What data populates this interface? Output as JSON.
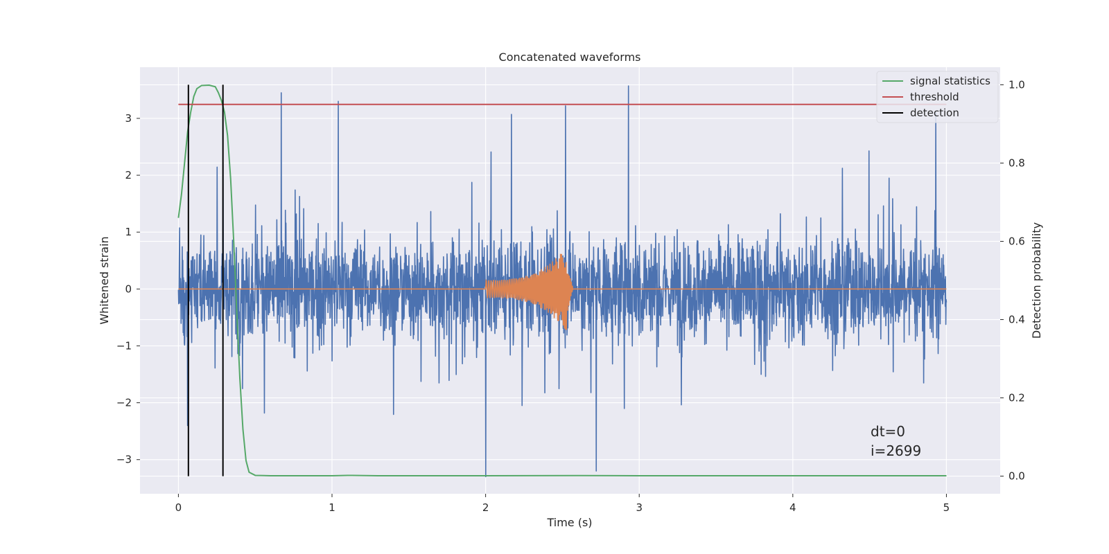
{
  "chart_data": {
    "type": "line",
    "title": "Concatenated waveforms",
    "xlabel": "Time (s)",
    "ylabel_left": "Whitened strain",
    "ylabel_right": "Detection probability",
    "xlim": [
      -0.25,
      5.35
    ],
    "ylim_left": [
      -3.6,
      3.9
    ],
    "ylim_right": [
      -0.045,
      1.045
    ],
    "xticks": [
      0,
      1,
      2,
      3,
      4,
      5
    ],
    "yticks_left": [
      -3,
      -2,
      -1,
      0,
      1,
      2,
      3
    ],
    "yticks_right": [
      0.0,
      0.2,
      0.4,
      0.6,
      0.8,
      1.0
    ],
    "xtick_labels": [
      "0",
      "1",
      "2",
      "3",
      "4",
      "5"
    ],
    "ytick_labels_left": [
      "−3",
      "−2",
      "−1",
      "0",
      "1",
      "2",
      "3"
    ],
    "ytick_labels_right": [
      "0.0",
      "0.2",
      "0.4",
      "0.6",
      "0.8",
      "1.0"
    ],
    "grid": true,
    "legend_position": "top-right",
    "legend": [
      {
        "label": "signal statistics",
        "color": "#55a868"
      },
      {
        "label": "threshold",
        "color": "#c44e52"
      },
      {
        "label": "detection",
        "color": "#000000"
      }
    ],
    "series": [
      {
        "name": "signal statistics",
        "axis": "right",
        "color": "#55a868",
        "x": [
          0.0,
          0.02,
          0.04,
          0.06,
          0.08,
          0.1,
          0.12,
          0.15,
          0.2,
          0.24,
          0.26,
          0.28,
          0.3,
          0.32,
          0.34,
          0.36,
          0.38,
          0.4,
          0.42,
          0.44,
          0.46,
          0.5,
          0.6,
          1.0,
          1.1,
          1.3,
          2.0,
          2.6,
          3.0,
          4.0,
          5.0
        ],
        "y": [
          0.66,
          0.72,
          0.8,
          0.88,
          0.93,
          0.97,
          0.99,
          0.998,
          0.999,
          0.995,
          0.98,
          0.96,
          0.93,
          0.87,
          0.76,
          0.6,
          0.42,
          0.25,
          0.12,
          0.04,
          0.01,
          0.002,
          0.001,
          0.001,
          0.002,
          0.001,
          0.001,
          0.0015,
          0.001,
          0.001,
          0.001
        ]
      },
      {
        "name": "threshold",
        "axis": "right",
        "color": "#c44e52",
        "x": [
          0.0,
          5.0
        ],
        "y": [
          0.95,
          0.95
        ]
      },
      {
        "name": "detection",
        "axis": "right",
        "color": "#000000",
        "type": "vlines",
        "x": [
          0.065,
          0.29
        ],
        "y": [
          0.0,
          1.0
        ]
      },
      {
        "name": "whitened strain",
        "axis": "left",
        "color": "#4c72b0",
        "type": "noise",
        "x_range": [
          0.0,
          5.0
        ],
        "y_range": [
          -3.3,
          3.57
        ],
        "peaks": [
          {
            "x": 0.67,
            "y": 3.45
          },
          {
            "x": 1.04,
            "y": 3.3
          },
          {
            "x": 2.52,
            "y": 3.22
          },
          {
            "x": 2.93,
            "y": 3.57
          },
          {
            "x": 4.93,
            "y": 3.1
          },
          {
            "x": 2.0,
            "y": -3.3
          },
          {
            "x": 2.72,
            "y": -3.2
          },
          {
            "x": 0.06,
            "y": -2.4
          }
        ]
      },
      {
        "name": "injected waveform",
        "axis": "left",
        "color": "#dd8452",
        "type": "chirp",
        "x_range": [
          0.0,
          5.0
        ],
        "chirp_start": 2.0,
        "chirp_end": 2.53,
        "amplitude_start": 0.16,
        "amplitude_peak": 0.75
      }
    ],
    "annotations": [
      "dt=0",
      "i=2699"
    ]
  }
}
